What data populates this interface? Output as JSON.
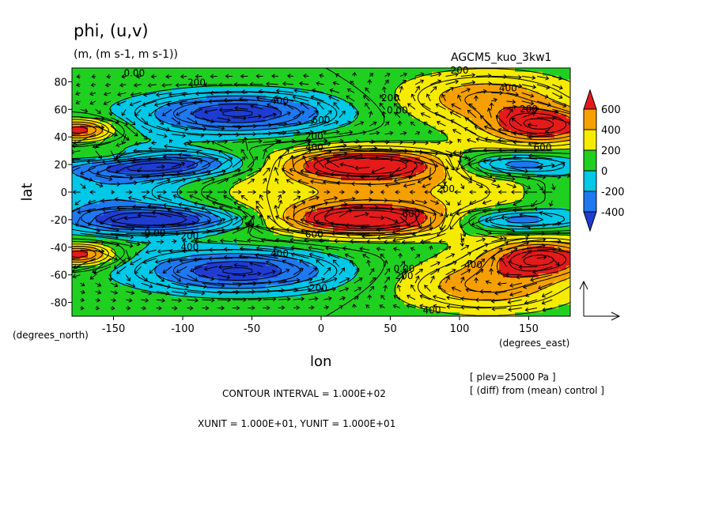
{
  "chart_data": {
    "type": "heatmap",
    "title": "phi, (u,v)",
    "subtitle": "(m, (m s-1, m s-1))",
    "run_label": "AGCM5_kuo_3kw1",
    "xlabel": "lon",
    "ylabel": "lat",
    "x_unit_label": "(degrees_east)",
    "y_unit_label": "(degrees_north)",
    "xlim": [
      -180,
      180
    ],
    "ylim": [
      -90,
      90
    ],
    "x_ticks": [
      -150,
      -100,
      -50,
      0,
      50,
      100,
      150
    ],
    "y_ticks": [
      80,
      60,
      40,
      20,
      0,
      -20,
      -40,
      -60,
      -80
    ],
    "colorbar": {
      "levels": [
        600,
        400,
        200,
        0,
        -200,
        -400
      ],
      "colors": [
        "#e51a1a",
        "#f5a000",
        "#f5eb00",
        "#20d020",
        "#00c8e6",
        "#1e78f0",
        "#1e3cd2"
      ]
    },
    "contour_labels": [
      "0.00",
      "200",
      "400",
      "600",
      "200",
      "400",
      "200",
      "0.00",
      "200",
      "400",
      "200",
      "600",
      "600",
      "400",
      "200",
      "0.00",
      "400",
      "200",
      "200",
      "400",
      "600",
      "0.00",
      "400",
      "200"
    ],
    "notes": {
      "contour_interval": "CONTOUR INTERVAL = 1.000E+02",
      "units": "XUNIT = 1.000E+01, YUNIT = 1.000E+01",
      "plev": "[ plev=25000 Pa ]",
      "diff": "[ (diff) from (mean) control ]"
    }
  }
}
